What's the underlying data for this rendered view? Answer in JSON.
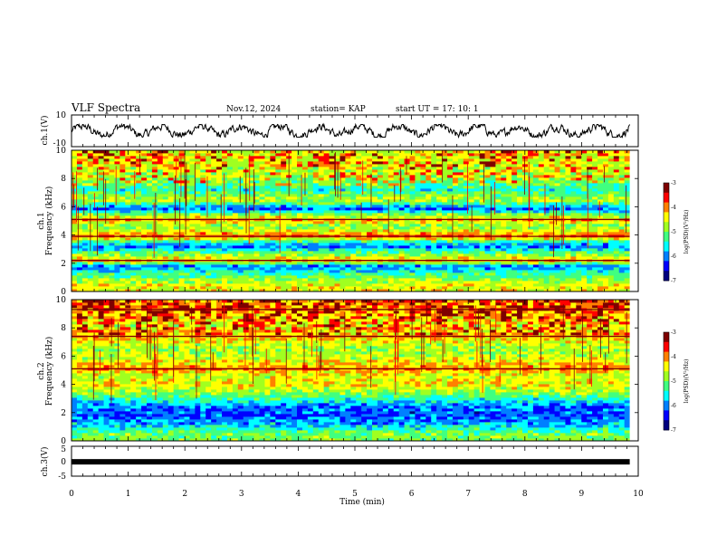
{
  "header": {
    "title": "VLF Spectra",
    "date": "Nov.12, 2024",
    "station": "station= KAP",
    "start_ut": "start UT =  17: 10: 1"
  },
  "colors": {
    "colormap": [
      "#00007f",
      "#0000ff",
      "#0080ff",
      "#00ffff",
      "#40ff80",
      "#a0ff20",
      "#ffff00",
      "#ff8000",
      "#ff0000",
      "#7f0000"
    ]
  },
  "chart_data": [
    {
      "type": "line",
      "panel": "ch1-waveform",
      "ylabel": "ch.1(V)",
      "ylim": [
        -10,
        10
      ],
      "yticks": [
        "10",
        "-10"
      ],
      "x_range_min": [
        0,
        9.85
      ],
      "y_approx_range": [
        -4,
        4
      ],
      "description_of_series": "noisy broadband waveform"
    },
    {
      "type": "heatmap",
      "panel": "ch1-spectrogram",
      "ylabel_top": "ch.1",
      "ylabel": "Frequency (kHz)",
      "ylim": [
        0,
        10
      ],
      "yticks": [
        "0",
        "2",
        "4",
        "6",
        "8",
        "10"
      ],
      "colorbar": {
        "label": "log(PSD)(V²/Hz)",
        "ticks": [
          "-3",
          "-4",
          "-5",
          "-6",
          "-7"
        ],
        "range": [
          -7,
          -3
        ]
      },
      "bands_khz": [
        {
          "f": 0.5,
          "level": -4.5
        },
        {
          "f": 1.2,
          "level": -5.2
        },
        {
          "f": 1.8,
          "level": -6.0
        },
        {
          "f": 2.2,
          "level": -4.2
        },
        {
          "f": 2.7,
          "level": -5.0
        },
        {
          "f": 3.2,
          "level": -6.0
        },
        {
          "f": 3.5,
          "level": -5.6
        },
        {
          "f": 3.9,
          "level": -3.8
        },
        {
          "f": 4.6,
          "level": -5.0
        },
        {
          "f": 5.1,
          "level": -4.2
        },
        {
          "f": 5.5,
          "level": -5.0
        },
        {
          "f": 5.9,
          "level": -6.2
        },
        {
          "f": 6.5,
          "level": -4.6
        },
        {
          "f": 7.2,
          "level": -5.4
        },
        {
          "f": 8.2,
          "level": -4.8
        },
        {
          "f": 9.2,
          "level": -4.5
        }
      ]
    },
    {
      "type": "heatmap",
      "panel": "ch2-spectrogram",
      "ylabel_top": "ch.2",
      "ylabel": "Frequency (kHz)",
      "ylim": [
        0,
        10
      ],
      "yticks": [
        "0",
        "2",
        "4",
        "6",
        "8",
        "10"
      ],
      "colorbar": {
        "label": "log(PSD)(V²/Hz)",
        "ticks": [
          "-3",
          "-4",
          "-5",
          "-6",
          "-7"
        ],
        "range": [
          -7,
          -3
        ]
      },
      "bands_khz": [
        {
          "f": 0.5,
          "level": -5.0
        },
        {
          "f": 1.2,
          "level": -5.8
        },
        {
          "f": 1.9,
          "level": -6.2
        },
        {
          "f": 2.5,
          "level": -6.0
        },
        {
          "f": 3.3,
          "level": -5.0
        },
        {
          "f": 4.0,
          "level": -4.4
        },
        {
          "f": 4.6,
          "level": -4.6
        },
        {
          "f": 5.1,
          "level": -4.0
        },
        {
          "f": 5.8,
          "level": -4.6
        },
        {
          "f": 6.6,
          "level": -4.8
        },
        {
          "f": 7.4,
          "level": -4.2
        },
        {
          "f": 8.2,
          "level": -4.6
        },
        {
          "f": 9.3,
          "level": -4.0
        }
      ]
    },
    {
      "type": "line",
      "panel": "ch3-waveform",
      "ylabel": "ch.3(V)",
      "ylim": [
        -5,
        5
      ],
      "yticks": [
        "5",
        "0",
        "-5"
      ],
      "y_approx": -0.2,
      "x_range_min": [
        0,
        9.85
      ]
    }
  ],
  "xaxis": {
    "label": "Time (min)",
    "range": [
      0,
      10
    ],
    "ticks": [
      "0",
      "1",
      "2",
      "3",
      "4",
      "5",
      "6",
      "7",
      "8",
      "9",
      "10"
    ]
  }
}
